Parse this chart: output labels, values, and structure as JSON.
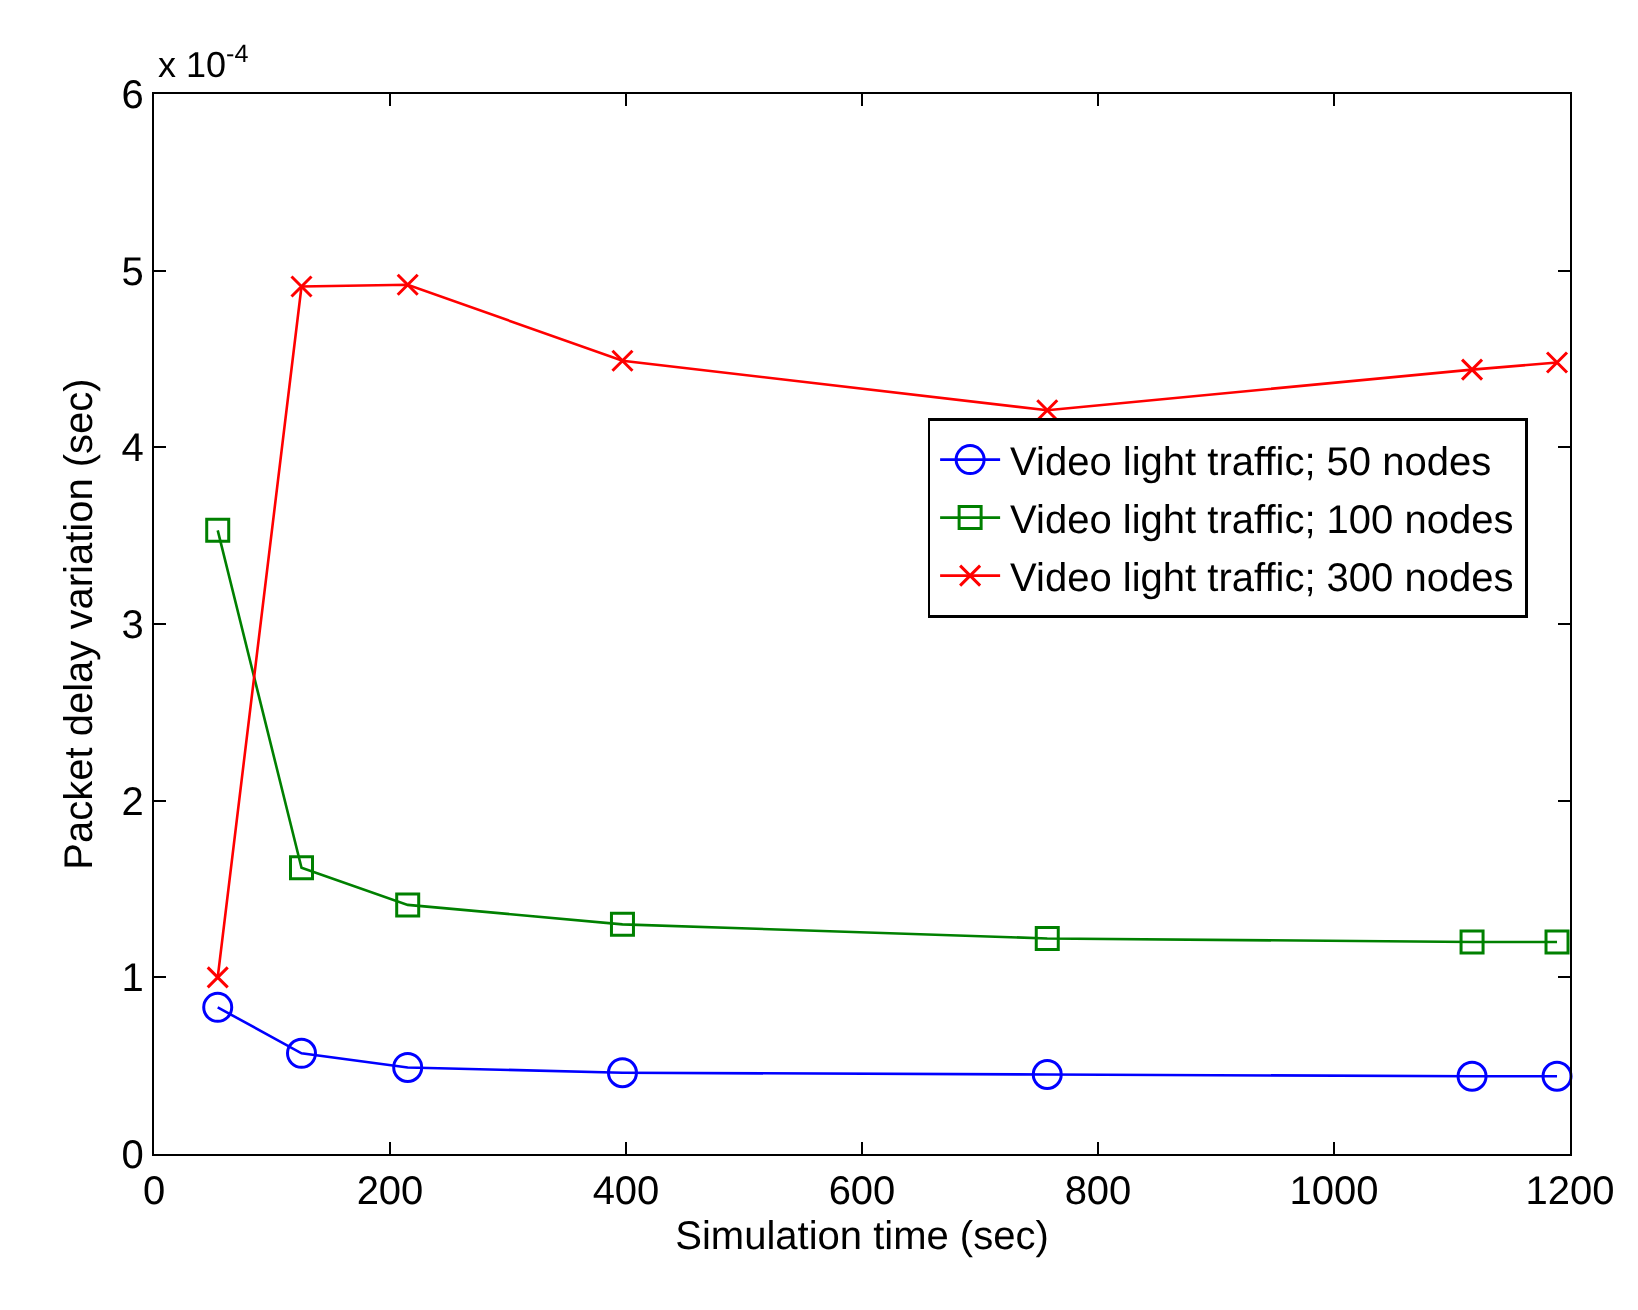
{
  "chart_data": {
    "type": "line",
    "xlabel": "Simulation time (sec)",
    "ylabel": "Packet delay variation (sec)",
    "annotations": [
      "x 10$^{-4}$"
    ],
    "x": [
      54,
      125,
      215,
      397,
      757,
      1117,
      1189
    ],
    "xlim": [
      0,
      1200
    ],
    "xticks": [
      0,
      200,
      400,
      600,
      800,
      1000,
      1200
    ],
    "ylim": [
      0,
      6
    ],
    "yticks": [
      0,
      1,
      2,
      3,
      4,
      5,
      6
    ],
    "grid": false,
    "legend": "right",
    "line_style": "solid",
    "series": [
      {
        "name": "Video light traffic; 50 nodes",
        "color": "#0000ff",
        "marker": "circle",
        "values": [
          0.83,
          0.57,
          0.49,
          0.46,
          0.45,
          0.44,
          0.44
        ]
      },
      {
        "name": "Video light traffic; 100 nodes",
        "color": "#008000",
        "marker": "square",
        "values": [
          3.53,
          1.62,
          1.41,
          1.3,
          1.22,
          1.2,
          1.2
        ]
      },
      {
        "name": "Video light traffic; 300 nodes",
        "color": "#ff0000",
        "marker": "cross",
        "values": [
          1.0,
          4.91,
          4.92,
          4.49,
          4.21,
          4.44,
          4.48
        ]
      }
    ]
  }
}
